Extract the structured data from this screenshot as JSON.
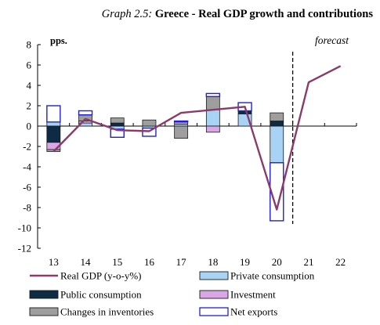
{
  "title_prefix": "Graph 2.5:",
  "title_main": "Greece - Real GDP growth and contributions",
  "chart_data": {
    "type": "bar",
    "stacked": true,
    "categories": [
      "13",
      "14",
      "15",
      "16",
      "17",
      "18",
      "19",
      "20",
      "21",
      "22"
    ],
    "ylim": [
      -12,
      8
    ],
    "yticks": [
      8,
      6,
      4,
      2,
      0,
      -2,
      -4,
      -6,
      -8,
      -10,
      -12
    ],
    "unit_label": "pps.",
    "forecast_label": "forecast",
    "forecast_start_between": [
      "20",
      "21"
    ],
    "series": [
      {
        "name": "Private consumption",
        "kind": "bar",
        "color": "#a9d3f5",
        "values": [
          0.4,
          0.3,
          -0.3,
          -0.2,
          0.2,
          1.6,
          1.2,
          -3.6,
          null,
          null
        ]
      },
      {
        "name": "Public consumption",
        "kind": "bar",
        "color": "#0d2b45",
        "values": [
          -1.6,
          0.0,
          0.3,
          0.0,
          0.0,
          0.0,
          0.3,
          0.5,
          null,
          null
        ]
      },
      {
        "name": "Investment",
        "kind": "bar",
        "color": "#d9a6e6",
        "values": [
          -0.7,
          0.2,
          0.0,
          0.0,
          0.2,
          -0.6,
          0.0,
          0.0,
          null,
          null
        ]
      },
      {
        "name": "Changes in inventories",
        "kind": "bar",
        "color": "#9e9e9e",
        "values": [
          -0.2,
          0.6,
          0.5,
          0.6,
          -1.2,
          1.3,
          0.0,
          0.8,
          null,
          null
        ]
      },
      {
        "name": "Net exports",
        "kind": "bar",
        "color": "#ffffff",
        "border": "#2020d8",
        "values": [
          1.6,
          0.4,
          -0.8,
          -0.8,
          0.1,
          0.3,
          0.8,
          -5.7,
          null,
          null
        ]
      },
      {
        "name": "Real GDP (y-o-y%)",
        "kind": "line",
        "color": "#8b3a6b",
        "values": [
          -2.5,
          0.7,
          -0.4,
          -0.5,
          1.3,
          1.6,
          1.9,
          -8.2,
          4.3,
          5.9
        ]
      }
    ],
    "legend": [
      {
        "name": "Real GDP (y-o-y%)",
        "symbol": "line",
        "color": "#8b3a6b"
      },
      {
        "name": "Private consumption",
        "symbol": "box",
        "color": "#a9d3f5"
      },
      {
        "name": "Public consumption",
        "symbol": "box",
        "color": "#0d2b45"
      },
      {
        "name": "Investment",
        "symbol": "box",
        "color": "#d9a6e6"
      },
      {
        "name": "Changes in inventories",
        "symbol": "box",
        "color": "#9e9e9e"
      },
      {
        "name": "Net exports",
        "symbol": "box",
        "color": "#ffffff",
        "border": "#2020d8"
      }
    ],
    "legend_placement": "bottom",
    "grid": false
  }
}
